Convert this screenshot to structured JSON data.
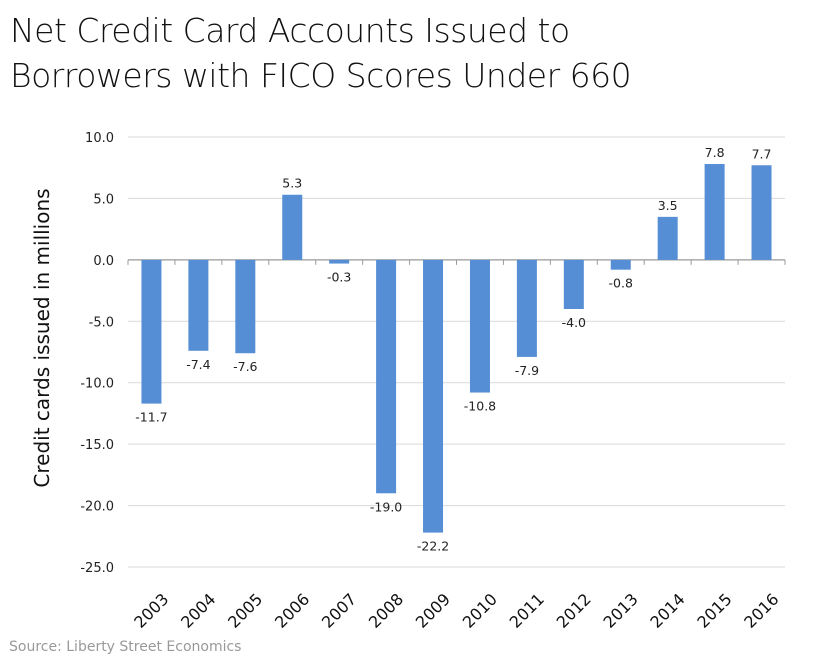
{
  "title": "Net Credit Card Accounts Issued to\nBorrowers with FICO Scores Under 660",
  "source": "Source: Liberty Street Economics",
  "colors": {
    "bar": "#558ed5",
    "grid": "#d9d9d9",
    "axis": "#999999"
  },
  "chart_data": {
    "type": "bar",
    "title": "Net Credit Card Accounts Issued to Borrowers with FICO Scores Under 660",
    "xlabel": "",
    "ylabel": "Credit cards issued in millions",
    "categories": [
      "2003",
      "2004",
      "2005",
      "2006",
      "2007",
      "2008",
      "2009",
      "2010",
      "2011",
      "2012",
      "2013",
      "2014",
      "2015",
      "2016"
    ],
    "values": [
      -11.7,
      -7.4,
      -7.6,
      5.3,
      -0.3,
      -19.0,
      -22.2,
      -10.8,
      -7.9,
      -4.0,
      -0.8,
      3.5,
      7.8,
      7.7
    ],
    "data_labels": [
      "-11.7",
      "-7.4",
      "-7.6",
      "5.3",
      "-0.3",
      "-19.0",
      "-22.2",
      "-10.8",
      "-7.9",
      "-4.0",
      "-0.8",
      "3.5",
      "7.8",
      "7.7"
    ],
    "ylim": [
      -25,
      10
    ],
    "yticks": [
      10,
      5,
      0,
      -5,
      -10,
      -15,
      -20,
      -25
    ],
    "ytick_labels": [
      "10.0",
      "5.0",
      "0.0",
      "-5.0",
      "-10.0",
      "-15.0",
      "-20.0",
      "-25.0"
    ],
    "grid": true,
    "legend": null,
    "source": "Source: Liberty Street Economics"
  }
}
